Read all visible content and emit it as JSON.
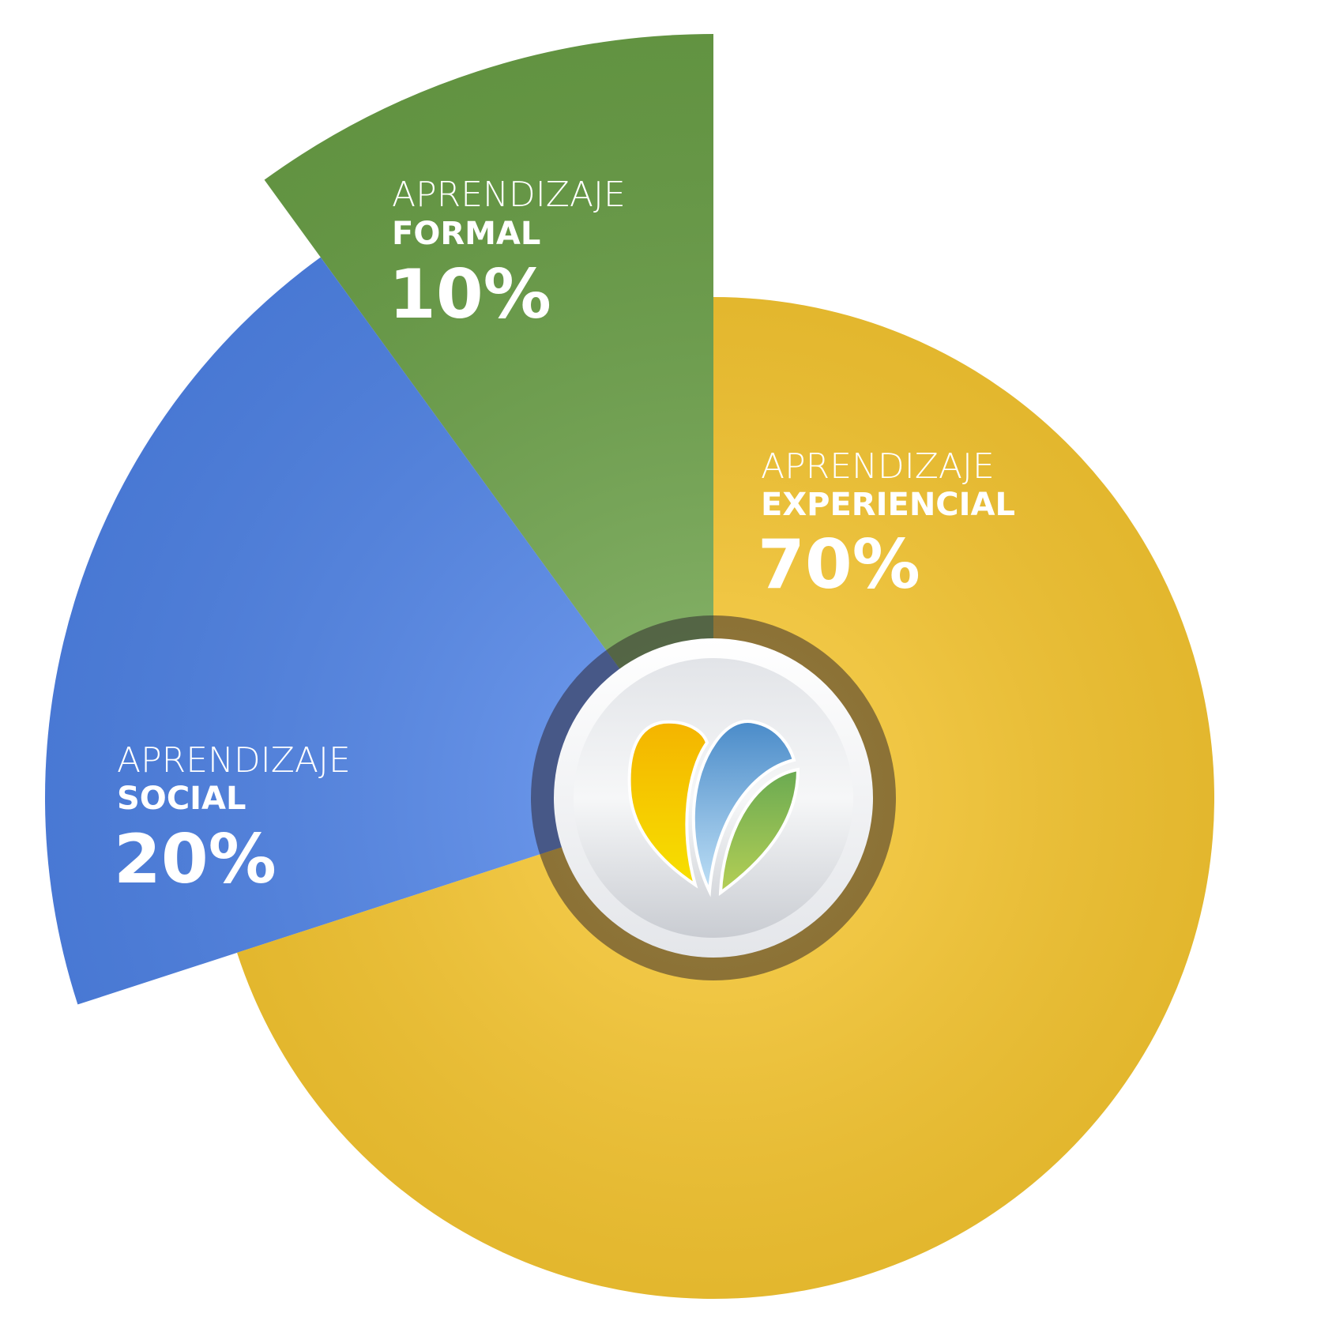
{
  "chart_data": {
    "type": "pie",
    "start": "top",
    "direction": "counterclockwise",
    "category_prefix": [
      "APRENDIZAJE",
      "APRENDIZAJE",
      "APRENDIZAJE"
    ],
    "categories": [
      "FORMAL",
      "SOCIAL",
      "EXPERIENCIAL"
    ],
    "values": [
      10,
      20,
      70
    ],
    "value_labels": [
      "10%",
      "20%",
      "70%"
    ],
    "colors": [
      "#6fa74a",
      "#4f86ef",
      "#fcc826"
    ]
  }
}
